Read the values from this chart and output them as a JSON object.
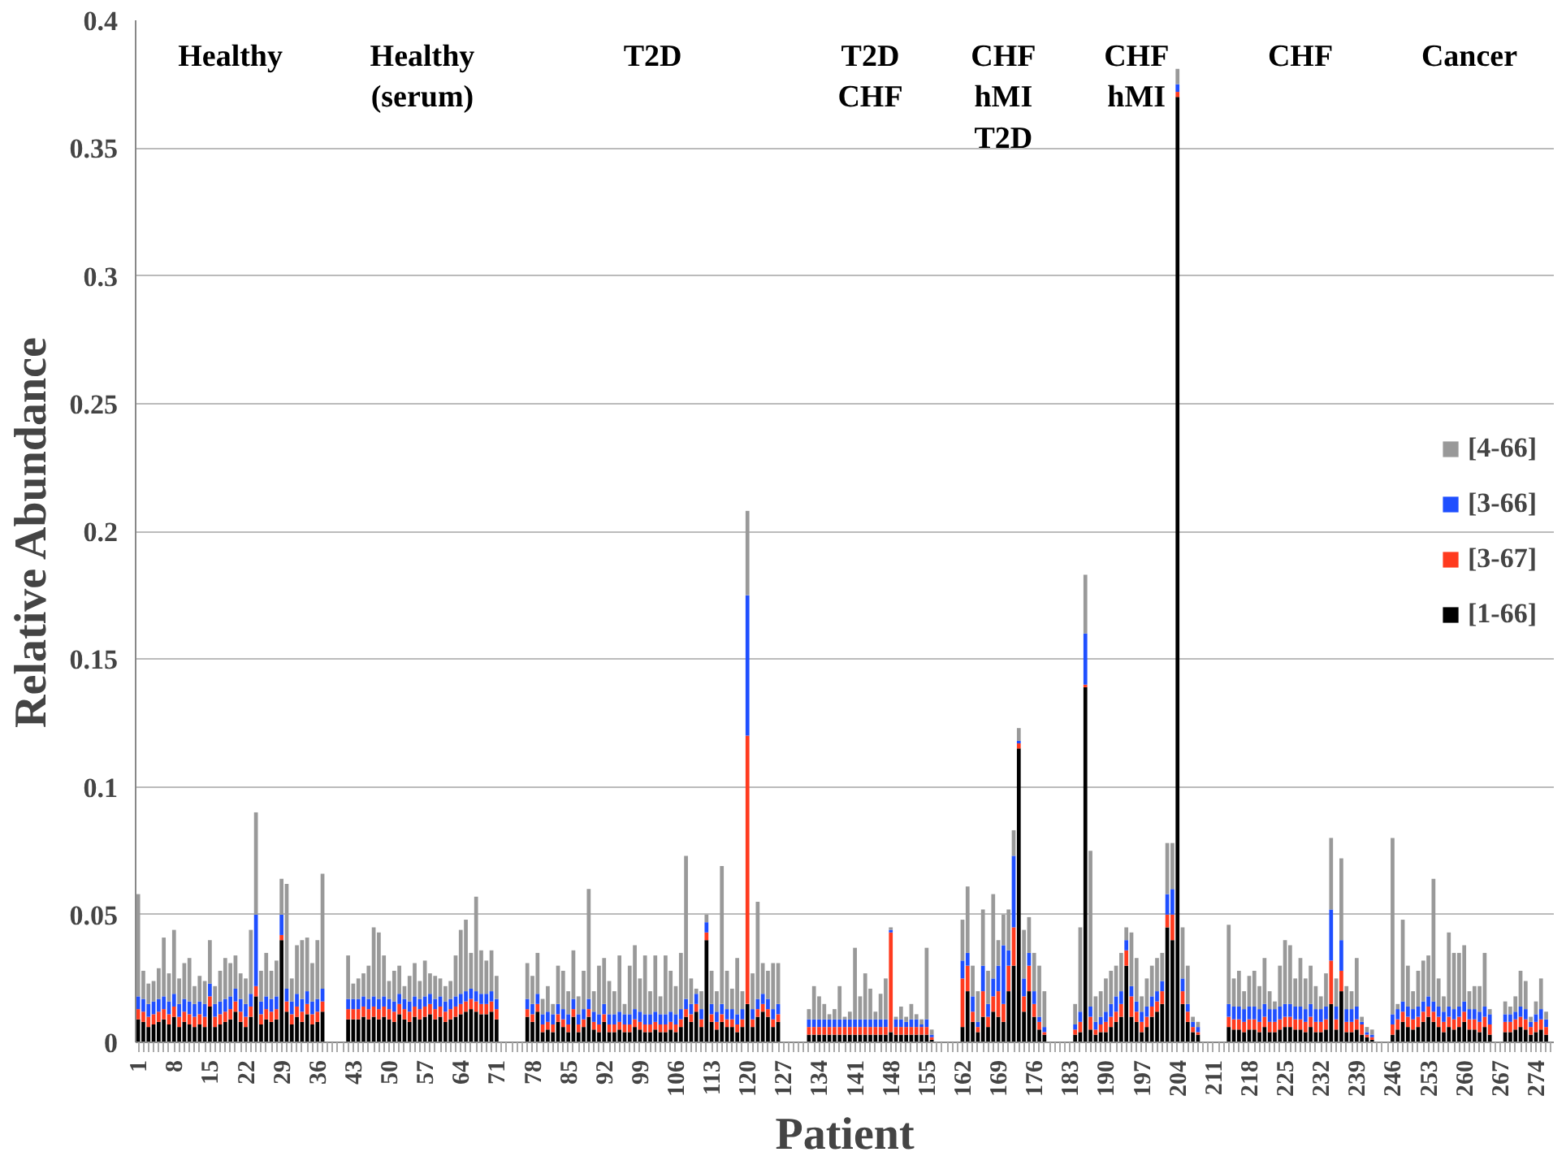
{
  "chart_data": {
    "type": "bar",
    "xlabel": "Patient",
    "ylabel": "Relative Abundance",
    "ylim": [
      0,
      0.4
    ],
    "yticks": [
      0,
      0.05,
      0.1,
      0.15,
      0.2,
      0.25,
      0.3,
      0.35,
      0.4
    ],
    "grid": "y",
    "legend": "right",
    "stacked": true,
    "categories": [
      "1",
      null,
      null,
      null,
      null,
      null,
      null,
      "8",
      null,
      null,
      null,
      null,
      null,
      null,
      "15",
      null,
      null,
      null,
      null,
      null,
      null,
      "22",
      null,
      null,
      null,
      null,
      null,
      null,
      "29",
      null,
      null,
      null,
      null,
      null,
      null,
      "36",
      null,
      null,
      null,
      null,
      null,
      null,
      "43",
      null,
      null,
      null,
      null,
      null,
      null,
      "50",
      null,
      null,
      null,
      null,
      null,
      null,
      "57",
      null,
      null,
      null,
      null,
      null,
      null,
      "64",
      null,
      null,
      null,
      null,
      null,
      null,
      "71",
      null,
      null,
      null,
      null,
      null,
      null,
      "78",
      null,
      null,
      null,
      null,
      null,
      null,
      "85",
      null,
      null,
      null,
      null,
      null,
      null,
      "92",
      null,
      null,
      null,
      null,
      null,
      null,
      "99",
      null,
      null,
      null,
      null,
      null,
      null,
      "106",
      null,
      null,
      null,
      null,
      null,
      null,
      "113",
      null,
      null,
      null,
      null,
      null,
      null,
      "120",
      null,
      null,
      null,
      null,
      null,
      null,
      "127",
      null,
      null,
      null,
      null,
      null,
      null,
      "134",
      null,
      null,
      null,
      null,
      null,
      null,
      "141",
      null,
      null,
      null,
      null,
      null,
      null,
      "148",
      null,
      null,
      null,
      null,
      null,
      null,
      "155",
      null,
      null,
      null,
      null,
      null,
      null,
      "162",
      null,
      null,
      null,
      null,
      null,
      null,
      "169",
      null,
      null,
      null,
      null,
      null,
      null,
      "176",
      null,
      null,
      null,
      null,
      null,
      null,
      "183",
      null,
      null,
      null,
      null,
      null,
      null,
      "190",
      null,
      null,
      null,
      null,
      null,
      null,
      "197",
      null,
      null,
      null,
      null,
      null,
      null,
      "204",
      null,
      null,
      null,
      null,
      null,
      null,
      "211",
      null,
      null,
      null,
      null,
      null,
      null,
      "218",
      null,
      null,
      null,
      null,
      null,
      null,
      "225",
      null,
      null,
      null,
      null,
      null,
      null,
      "232",
      null,
      null,
      null,
      null,
      null,
      null,
      "239",
      null,
      null,
      null,
      null,
      null,
      null,
      "246",
      null,
      null,
      null,
      null,
      null,
      null,
      "253",
      null,
      null,
      null,
      null,
      null,
      null,
      "260",
      null,
      null,
      null,
      null,
      null,
      null,
      "267",
      null,
      null,
      null,
      null,
      null,
      null,
      "274",
      null,
      null,
      null
    ],
    "series": [
      {
        "name": "[1-66]",
        "color": "#000000",
        "values": [
          0.009,
          0.008,
          0.006,
          0.007,
          0.008,
          0.009,
          0.007,
          0.01,
          0.006,
          0.008,
          0.007,
          0.006,
          0.007,
          0.006,
          0.014,
          0.006,
          0.007,
          0.008,
          0.009,
          0.012,
          0.008,
          0.006,
          0.01,
          0.018,
          0.007,
          0.009,
          0.008,
          0.009,
          0.04,
          0.012,
          0.007,
          0.01,
          0.008,
          0.011,
          0.007,
          0.008,
          0.012,
          null,
          null,
          null,
          null,
          0.009,
          0.009,
          0.009,
          0.01,
          0.009,
          0.01,
          0.009,
          0.01,
          0.009,
          0.008,
          0.011,
          0.009,
          0.008,
          0.01,
          0.009,
          0.01,
          0.011,
          0.009,
          0.01,
          0.008,
          0.009,
          0.01,
          0.011,
          0.012,
          0.013,
          0.012,
          0.011,
          0.011,
          0.012,
          0.009,
          null,
          null,
          null,
          null,
          null,
          0.01,
          0.008,
          0.012,
          0.004,
          0.005,
          0.004,
          0.008,
          0.006,
          0.004,
          0.01,
          0.004,
          0.006,
          0.01,
          0.005,
          0.004,
          0.008,
          0.004,
          0.004,
          0.005,
          0.004,
          0.004,
          0.006,
          0.005,
          0.004,
          0.004,
          0.005,
          0.004,
          0.004,
          0.005,
          0.004,
          0.006,
          0.01,
          0.008,
          0.012,
          0.006,
          0.04,
          0.008,
          0.005,
          0.008,
          0.006,
          0.006,
          0.004,
          0.006,
          0.015,
          0.006,
          0.01,
          0.012,
          0.01,
          0.006,
          0.008,
          null,
          null,
          null,
          null,
          null,
          0.003,
          0.003,
          0.003,
          0.003,
          0.003,
          0.003,
          0.003,
          0.003,
          0.003,
          0.003,
          0.003,
          0.003,
          0.003,
          0.003,
          0.003,
          0.003,
          0.004,
          0.003,
          0.003,
          0.003,
          0.003,
          0.003,
          0.003,
          0.003,
          0.001,
          null,
          null,
          null,
          null,
          null,
          0.006,
          0.02,
          0.008,
          0.004,
          0.01,
          0.006,
          0.012,
          0.01,
          0.008,
          0.02,
          0.03,
          0.115,
          0.012,
          0.02,
          0.01,
          0.005,
          0.003,
          null,
          null,
          null,
          null,
          null,
          0.003,
          0.004,
          0.139,
          0.005,
          0.003,
          0.004,
          0.004,
          0.006,
          0.008,
          0.01,
          0.03,
          0.01,
          0.008,
          0.004,
          0.006,
          0.01,
          0.012,
          0.015,
          0.045,
          0.04,
          0.37,
          0.015,
          0.008,
          0.004,
          0.003,
          null,
          null,
          null,
          null,
          null,
          0.006,
          0.005,
          0.005,
          0.004,
          0.005,
          0.005,
          0.004,
          0.006,
          0.004,
          0.004,
          0.005,
          0.006,
          0.006,
          0.005,
          0.005,
          0.004,
          0.006,
          0.004,
          0.004,
          0.005,
          0.015,
          0.005,
          0.02,
          0.004,
          0.004,
          0.005,
          0.003,
          0.002,
          0.001,
          null,
          null,
          null,
          0.003,
          0.005,
          0.008,
          0.006,
          0.005,
          0.006,
          0.008,
          0.01,
          0.008,
          0.006,
          0.004,
          0.006,
          0.005,
          0.006,
          0.008,
          0.005,
          0.005,
          0.004,
          0.006,
          0.003,
          null,
          null,
          0.004,
          0.004,
          0.005,
          0.006,
          0.005,
          0.003,
          0.004,
          0.005,
          0.003,
          null
        ]
      },
      {
        "name": "[3-67]",
        "color": "#ff3b1f",
        "values": [
          0.004,
          0.004,
          0.004,
          0.004,
          0.004,
          0.004,
          0.004,
          0.004,
          0.004,
          0.004,
          0.004,
          0.004,
          0.004,
          0.004,
          0.004,
          0.004,
          0.004,
          0.004,
          0.004,
          0.004,
          0.004,
          0.004,
          0.004,
          0.004,
          0.004,
          0.004,
          0.004,
          0.004,
          0.002,
          0.004,
          0.004,
          0.004,
          0.004,
          0.004,
          0.004,
          0.004,
          0.004,
          null,
          null,
          null,
          null,
          0.004,
          0.004,
          0.004,
          0.004,
          0.004,
          0.004,
          0.004,
          0.004,
          0.004,
          0.004,
          0.004,
          0.004,
          0.004,
          0.004,
          0.004,
          0.004,
          0.004,
          0.004,
          0.004,
          0.004,
          0.004,
          0.004,
          0.004,
          0.004,
          0.004,
          0.004,
          0.004,
          0.004,
          0.004,
          0.004,
          null,
          null,
          null,
          null,
          null,
          0.003,
          0.003,
          0.003,
          0.003,
          0.003,
          0.003,
          0.003,
          0.003,
          0.003,
          0.003,
          0.003,
          0.003,
          0.003,
          0.003,
          0.003,
          0.003,
          0.003,
          0.003,
          0.003,
          0.003,
          0.003,
          0.003,
          0.003,
          0.003,
          0.003,
          0.003,
          0.003,
          0.003,
          0.003,
          0.003,
          0.003,
          0.003,
          0.003,
          0.003,
          0.003,
          0.003,
          0.003,
          0.003,
          0.003,
          0.003,
          0.003,
          0.003,
          0.003,
          0.105,
          0.003,
          0.003,
          0.003,
          0.003,
          0.003,
          0.003,
          null,
          null,
          null,
          null,
          null,
          0.003,
          0.003,
          0.003,
          0.003,
          0.003,
          0.003,
          0.003,
          0.003,
          0.003,
          0.003,
          0.003,
          0.003,
          0.003,
          0.003,
          0.003,
          0.003,
          0.039,
          0.003,
          0.003,
          0.003,
          0.003,
          0.003,
          0.003,
          0.003,
          0.001,
          null,
          null,
          null,
          null,
          null,
          0.019,
          0.01,
          0.004,
          0.002,
          0.01,
          0.004,
          0.006,
          0.01,
          0.007,
          0.01,
          0.015,
          0.002,
          0.006,
          0.01,
          0.005,
          0.003,
          0.001,
          null,
          null,
          null,
          null,
          null,
          0.002,
          0.004,
          0.001,
          0.005,
          0.002,
          0.003,
          0.004,
          0.004,
          0.004,
          0.005,
          0.006,
          0.008,
          0.004,
          0.004,
          0.004,
          0.004,
          0.004,
          0.005,
          0.005,
          0.01,
          0.002,
          0.005,
          0.004,
          0.002,
          0.001,
          null,
          null,
          null,
          null,
          null,
          0.004,
          0.004,
          0.004,
          0.004,
          0.004,
          0.004,
          0.004,
          0.004,
          0.004,
          0.004,
          0.004,
          0.004,
          0.004,
          0.004,
          0.004,
          0.004,
          0.004,
          0.004,
          0.004,
          0.004,
          0.017,
          0.004,
          0.008,
          0.004,
          0.004,
          0.004,
          0.004,
          0.001,
          0.001,
          null,
          null,
          null,
          0.004,
          0.004,
          0.004,
          0.004,
          0.004,
          0.004,
          0.004,
          0.004,
          0.004,
          0.004,
          0.004,
          0.004,
          0.004,
          0.004,
          0.004,
          0.004,
          0.004,
          0.004,
          0.004,
          0.004,
          null,
          null,
          0.004,
          0.004,
          0.004,
          0.004,
          0.004,
          0.003,
          0.004,
          0.004,
          0.003,
          null
        ]
      },
      {
        "name": "[3-66]",
        "color": "#1f4fff",
        "values": [
          0.005,
          0.005,
          0.005,
          0.005,
          0.005,
          0.005,
          0.005,
          0.005,
          0.005,
          0.005,
          0.005,
          0.005,
          0.005,
          0.005,
          0.005,
          0.005,
          0.005,
          0.005,
          0.005,
          0.005,
          0.005,
          0.005,
          0.005,
          0.028,
          0.005,
          0.005,
          0.005,
          0.005,
          0.008,
          0.005,
          0.005,
          0.005,
          0.005,
          0.005,
          0.005,
          0.005,
          0.005,
          null,
          null,
          null,
          null,
          0.004,
          0.004,
          0.004,
          0.004,
          0.004,
          0.004,
          0.004,
          0.004,
          0.004,
          0.004,
          0.004,
          0.004,
          0.004,
          0.004,
          0.004,
          0.004,
          0.004,
          0.004,
          0.004,
          0.004,
          0.004,
          0.004,
          0.004,
          0.004,
          0.004,
          0.004,
          0.004,
          0.004,
          0.004,
          0.004,
          null,
          null,
          null,
          null,
          null,
          0.004,
          0.004,
          0.004,
          0.004,
          0.004,
          0.004,
          0.004,
          0.004,
          0.004,
          0.004,
          0.004,
          0.004,
          0.004,
          0.004,
          0.004,
          0.004,
          0.004,
          0.004,
          0.004,
          0.004,
          0.004,
          0.004,
          0.004,
          0.004,
          0.004,
          0.004,
          0.004,
          0.004,
          0.004,
          0.004,
          0.004,
          0.004,
          0.004,
          0.004,
          0.004,
          0.004,
          0.004,
          0.004,
          0.004,
          0.004,
          0.004,
          0.004,
          0.004,
          0.055,
          0.004,
          0.004,
          0.004,
          0.004,
          0.004,
          0.004,
          null,
          null,
          null,
          null,
          null,
          0.003,
          0.003,
          0.003,
          0.003,
          0.003,
          0.003,
          0.003,
          0.003,
          0.003,
          0.003,
          0.003,
          0.003,
          0.003,
          0.003,
          0.003,
          0.003,
          0.001,
          0.003,
          0.003,
          0.002,
          0.003,
          0.003,
          0.001,
          0.003,
          0.001,
          null,
          null,
          null,
          null,
          null,
          0.007,
          0.005,
          0.006,
          0.002,
          0.01,
          0.005,
          0.007,
          0.01,
          0.023,
          0.006,
          0.028,
          0.001,
          0.007,
          0.005,
          0.005,
          0.002,
          0.002,
          null,
          null,
          null,
          null,
          null,
          0.002,
          0.004,
          0.02,
          0.004,
          0.003,
          0.003,
          0.004,
          0.005,
          0.006,
          0.005,
          0.004,
          0.004,
          0.004,
          0.004,
          0.004,
          0.004,
          0.004,
          0.004,
          0.008,
          0.01,
          0.003,
          0.005,
          0.003,
          0.002,
          0.002,
          null,
          null,
          null,
          null,
          null,
          0.005,
          0.005,
          0.005,
          0.005,
          0.005,
          0.005,
          0.005,
          0.005,
          0.005,
          0.005,
          0.005,
          0.005,
          0.005,
          0.005,
          0.005,
          0.005,
          0.005,
          0.005,
          0.005,
          0.005,
          0.02,
          0.005,
          0.012,
          0.005,
          0.005,
          0.005,
          0.001,
          0.001,
          0.001,
          null,
          null,
          null,
          0.004,
          0.004,
          0.004,
          0.004,
          0.004,
          0.004,
          0.004,
          0.004,
          0.004,
          0.004,
          0.004,
          0.004,
          0.004,
          0.004,
          0.004,
          0.004,
          0.004,
          0.004,
          0.004,
          0.004,
          null,
          null,
          0.003,
          0.003,
          0.003,
          0.004,
          0.004,
          0.002,
          0.003,
          0.004,
          0.003,
          null
        ]
      },
      {
        "name": "[4-66]",
        "color": "#999999",
        "values": [
          0.04,
          0.011,
          0.008,
          0.008,
          0.012,
          0.023,
          0.011,
          0.025,
          0.01,
          0.014,
          0.017,
          0.007,
          0.01,
          0.009,
          0.017,
          0.007,
          0.012,
          0.016,
          0.013,
          0.013,
          0.01,
          0.01,
          0.025,
          0.04,
          0.012,
          0.017,
          0.011,
          0.014,
          0.014,
          0.041,
          0.009,
          0.019,
          0.023,
          0.021,
          0.015,
          0.023,
          0.045,
          null,
          null,
          null,
          null,
          0.017,
          0.006,
          0.008,
          0.009,
          0.013,
          0.027,
          0.026,
          0.016,
          0.007,
          0.012,
          0.011,
          0.005,
          0.01,
          0.013,
          0.007,
          0.014,
          0.008,
          0.009,
          0.007,
          0.006,
          0.007,
          0.016,
          0.025,
          0.028,
          0.014,
          0.037,
          0.017,
          0.013,
          0.016,
          0.009,
          null,
          null,
          null,
          null,
          null,
          0.014,
          0.011,
          0.016,
          0.006,
          0.01,
          0.004,
          0.015,
          0.015,
          0.009,
          0.019,
          0.007,
          0.015,
          0.043,
          0.008,
          0.019,
          0.018,
          0.013,
          0.009,
          0.022,
          0.004,
          0.019,
          0.025,
          0.013,
          0.023,
          0.009,
          0.022,
          0.007,
          0.023,
          0.016,
          0.011,
          0.022,
          0.056,
          0.01,
          0.002,
          0.007,
          0.003,
          0.013,
          0.008,
          0.054,
          0.015,
          0.008,
          0.022,
          0.007,
          0.033,
          0.014,
          0.038,
          0.012,
          0.011,
          0.018,
          0.016,
          null,
          null,
          null,
          null,
          null,
          0.004,
          0.013,
          0.009,
          0.006,
          0.002,
          0.004,
          0.013,
          0.001,
          0.003,
          0.028,
          0.009,
          0.018,
          0.012,
          0.003,
          0.01,
          0.016,
          0.001,
          0.001,
          0.005,
          0.002,
          0.006,
          0.002,
          0.002,
          0.028,
          0.002,
          null,
          null,
          null,
          null,
          null,
          0.016,
          0.026,
          0.012,
          0.012,
          0.022,
          0.013,
          0.033,
          0.01,
          0.012,
          0.016,
          0.01,
          0.005,
          0.019,
          0.014,
          0.015,
          0.02,
          0.014,
          null,
          null,
          null,
          null,
          null,
          0.008,
          0.033,
          0.023,
          0.061,
          0.01,
          0.01,
          0.013,
          0.013,
          0.012,
          0.015,
          0.005,
          0.021,
          0.017,
          0.006,
          0.011,
          0.012,
          0.013,
          0.011,
          0.02,
          0.018,
          0.006,
          0.02,
          0.015,
          0.002,
          0.002,
          null,
          null,
          null,
          null,
          null,
          0.031,
          0.011,
          0.014,
          0.007,
          0.012,
          0.014,
          0.009,
          0.018,
          0.007,
          0.003,
          0.016,
          0.025,
          0.023,
          0.011,
          0.019,
          0.012,
          0.015,
          0.009,
          0.005,
          0.013,
          0.028,
          0.011,
          0.032,
          0.009,
          0.007,
          0.019,
          0.002,
          0.002,
          0.002,
          null,
          null,
          null,
          0.069,
          0.002,
          0.032,
          0.016,
          0.007,
          0.014,
          0.016,
          0.016,
          0.048,
          0.011,
          0.006,
          0.029,
          0.022,
          0.021,
          0.022,
          0.007,
          0.009,
          0.01,
          0.021,
          0.002,
          null,
          null,
          0.005,
          0.003,
          0.006,
          0.014,
          0.011,
          0.002,
          0.005,
          0.012,
          0.003,
          null
        ]
      }
    ],
    "annotations": [
      "Healthy",
      "Healthy\n(serum)",
      "T2D",
      "T2D\nCHF",
      "CHF\nhMI\nT2D",
      "CHF\nhMI",
      "CHF",
      "Cancer"
    ]
  }
}
